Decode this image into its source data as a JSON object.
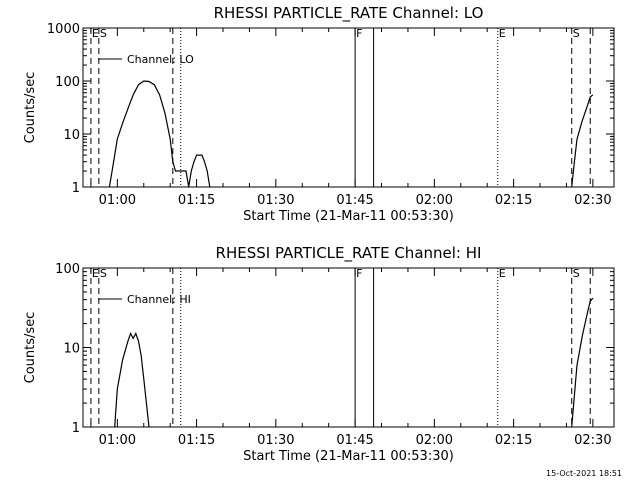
{
  "chart_data": [
    {
      "type": "line",
      "title": "RHESSI PARTICLE_RATE Channel: LO",
      "xlabel": "Start Time (21-Mar-11 00:53:30)",
      "ylabel": "Counts/sec",
      "yscale": "log",
      "ylim": [
        1,
        1000
      ],
      "xlim": [
        "00:53:30",
        "02:34:00"
      ],
      "x_ticks": [
        "01:00",
        "01:15",
        "01:30",
        "01:45",
        "02:00",
        "02:15",
        "02:30"
      ],
      "y_ticks": [
        "1",
        "10",
        "100",
        "1000"
      ],
      "legend": "Channel: LO",
      "legend_position": "top-left",
      "markers": [
        {
          "label": "E",
          "time": "00:55:00",
          "style": "dashed"
        },
        {
          "label": "S",
          "time": "00:56:30",
          "style": "dashed"
        },
        {
          "label": "",
          "time": "01:10:30",
          "style": "dashed"
        },
        {
          "label": "",
          "time": "01:12:00",
          "style": "dotted"
        },
        {
          "label": "F",
          "time": "01:45:00",
          "style": "solid"
        },
        {
          "label": "",
          "time": "01:48:30",
          "style": "solid"
        },
        {
          "label": "E",
          "time": "02:12:00",
          "style": "dotted"
        },
        {
          "label": "S",
          "time": "02:26:00",
          "style": "dashed"
        },
        {
          "label": "",
          "time": "02:29:30",
          "style": "dashed"
        }
      ],
      "series": [
        {
          "segments": [
            [
              [
                "00:58:30",
                1
              ],
              [
                "00:59:00",
                2
              ],
              [
                "00:59:30",
                4
              ],
              [
                "01:00:00",
                8
              ],
              [
                "01:01:00",
                16
              ],
              [
                "01:02:00",
                30
              ],
              [
                "01:03:00",
                55
              ],
              [
                "01:04:00",
                85
              ],
              [
                "01:05:00",
                100
              ],
              [
                "01:06:00",
                98
              ],
              [
                "01:07:00",
                85
              ],
              [
                "01:08:00",
                55
              ],
              [
                "01:09:00",
                25
              ],
              [
                "01:10:00",
                8
              ],
              [
                "01:10:30",
                3
              ],
              [
                "01:11:00",
                2
              ],
              [
                "01:12:00",
                2
              ],
              [
                "01:13:00",
                2
              ],
              [
                "01:13:30",
                1
              ],
              [
                "01:14:00",
                2
              ],
              [
                "01:14:30",
                3
              ],
              [
                "01:15:00",
                4
              ],
              [
                "01:16:00",
                4
              ],
              [
                "01:16:30",
                3
              ],
              [
                "01:17:00",
                2
              ],
              [
                "01:17:30",
                1
              ]
            ],
            [
              [
                "02:26:00",
                1
              ],
              [
                "02:26:30",
                3
              ],
              [
                "02:27:00",
                8
              ],
              [
                "02:28:00",
                18
              ],
              [
                "02:29:00",
                35
              ],
              [
                "02:29:30",
                50
              ],
              [
                "02:30:00",
                55
              ]
            ]
          ]
        }
      ]
    },
    {
      "type": "line",
      "title": "RHESSI PARTICLE_RATE Channel: HI",
      "xlabel": "Start Time (21-Mar-11 00:53:30)",
      "ylabel": "Counts/sec",
      "yscale": "log",
      "ylim": [
        1,
        100
      ],
      "xlim": [
        "00:53:30",
        "02:34:00"
      ],
      "x_ticks": [
        "01:00",
        "01:15",
        "01:30",
        "01:45",
        "02:00",
        "02:15",
        "02:30"
      ],
      "y_ticks": [
        "1",
        "10",
        "100"
      ],
      "legend": "Channel: HI",
      "legend_position": "top-left",
      "markers": [
        {
          "label": "E",
          "time": "00:55:00",
          "style": "dashed"
        },
        {
          "label": "S",
          "time": "00:56:30",
          "style": "dashed"
        },
        {
          "label": "",
          "time": "01:10:30",
          "style": "dashed"
        },
        {
          "label": "",
          "time": "01:12:00",
          "style": "dotted"
        },
        {
          "label": "F",
          "time": "01:45:00",
          "style": "solid"
        },
        {
          "label": "",
          "time": "01:48:30",
          "style": "solid"
        },
        {
          "label": "E",
          "time": "02:12:00",
          "style": "dotted"
        },
        {
          "label": "S",
          "time": "02:26:00",
          "style": "dashed"
        },
        {
          "label": "",
          "time": "02:29:30",
          "style": "dashed"
        }
      ],
      "series": [
        {
          "segments": [
            [
              [
                "00:59:30",
                1
              ],
              [
                "01:00:00",
                3
              ],
              [
                "01:01:00",
                7
              ],
              [
                "01:02:00",
                12
              ],
              [
                "01:02:30",
                15
              ],
              [
                "01:03:00",
                13
              ],
              [
                "01:03:30",
                15
              ],
              [
                "01:04:00",
                12
              ],
              [
                "01:04:30",
                8
              ],
              [
                "01:05:00",
                4
              ],
              [
                "01:05:30",
                2
              ],
              [
                "01:06:00",
                1
              ]
            ],
            [
              [
                "02:26:00",
                1
              ],
              [
                "02:26:30",
                2.5
              ],
              [
                "02:27:00",
                6
              ],
              [
                "02:28:00",
                14
              ],
              [
                "02:29:00",
                28
              ],
              [
                "02:29:30",
                38
              ],
              [
                "02:30:00",
                42
              ]
            ]
          ]
        }
      ]
    }
  ],
  "footer": {
    "timestamp": "15-Oct-2021 18:51"
  }
}
